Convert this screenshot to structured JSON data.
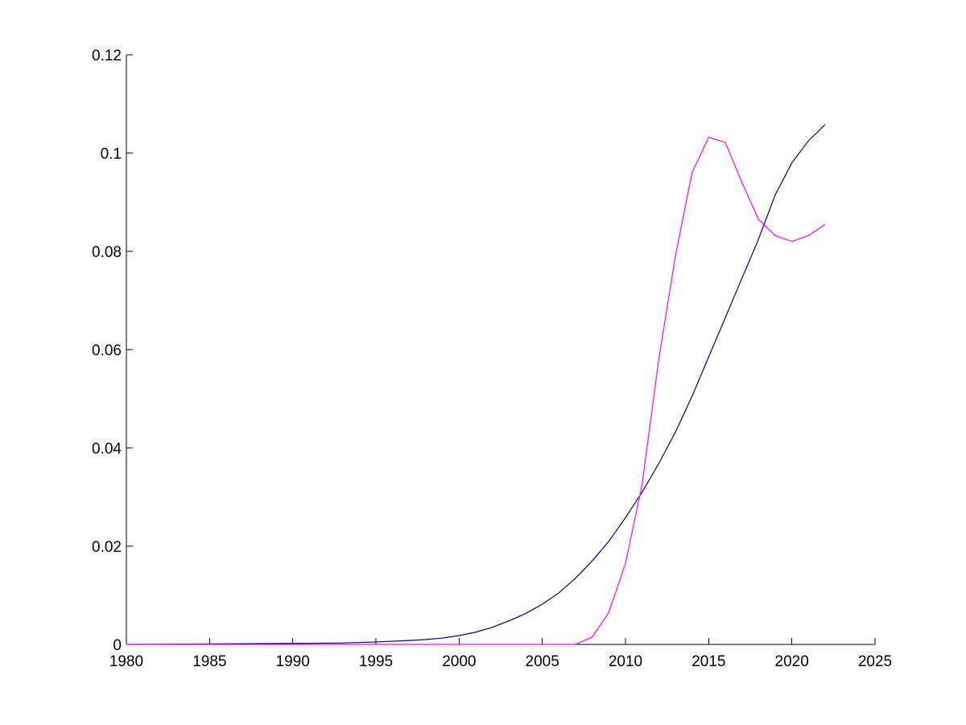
{
  "chart_data": {
    "type": "line",
    "title": "",
    "xlabel": "",
    "ylabel": "",
    "xlim": [
      1980,
      2025
    ],
    "ylim": [
      0,
      0.12
    ],
    "grid": false,
    "legend": "none",
    "x_ticks": [
      1980,
      1985,
      1990,
      1995,
      2000,
      2005,
      2010,
      2015,
      2020,
      2025
    ],
    "x_tick_labels": [
      "1980",
      "1985",
      "1990",
      "1995",
      "2000",
      "2005",
      "2010",
      "2015",
      "2020",
      "2025"
    ],
    "y_ticks": [
      0,
      0.02,
      0.04,
      0.06,
      0.08,
      0.1,
      0.12
    ],
    "y_tick_labels": [
      "0",
      "0.02",
      "0.04",
      "0.06",
      "0.08",
      "0.1",
      "0.12"
    ],
    "series": [
      {
        "color": "#00008b",
        "x": [
          1980,
          1985,
          1990,
          1993,
          1995,
          1997,
          1998,
          1999,
          2000,
          2001,
          2002,
          2003,
          2004,
          2005,
          2006,
          2007,
          2008,
          2009,
          2010,
          2011,
          2012,
          2013,
          2014,
          2015,
          2016,
          2017,
          2018,
          2019,
          2020,
          2021,
          2022
        ],
        "y": [
          0,
          0.0001,
          0.0002,
          0.0003,
          0.0005,
          0.0008,
          0.001,
          0.0013,
          0.0018,
          0.0025,
          0.0035,
          0.0048,
          0.0063,
          0.0082,
          0.0105,
          0.0135,
          0.017,
          0.021,
          0.0258,
          0.031,
          0.0368,
          0.0432,
          0.0505,
          0.0585,
          0.0665,
          0.0745,
          0.0825,
          0.0915,
          0.098,
          0.1025,
          0.1058
        ]
      },
      {
        "color": "#ff00ff",
        "x": [
          1980,
          1985,
          1990,
          1995,
          2000,
          2005,
          2007,
          2008,
          2009,
          2010,
          2011,
          2012,
          2013,
          2014,
          2015,
          2016,
          2017,
          2018,
          2019,
          2020,
          2021,
          2022
        ],
        "y": [
          0,
          0,
          0,
          0,
          0,
          0,
          0,
          0.0015,
          0.0065,
          0.0165,
          0.0325,
          0.058,
          0.079,
          0.096,
          0.1032,
          0.1022,
          0.094,
          0.0865,
          0.0832,
          0.082,
          0.0832,
          0.0855
        ]
      }
    ]
  }
}
